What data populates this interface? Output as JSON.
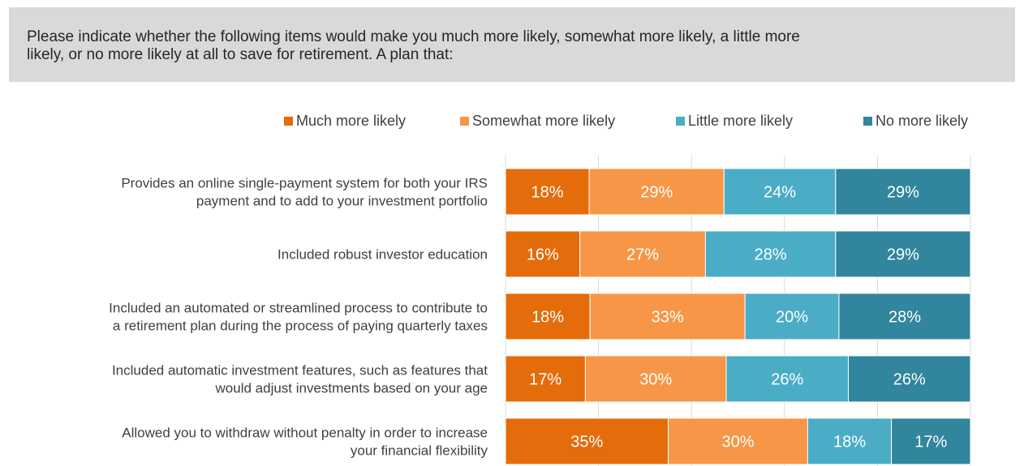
{
  "question": {
    "lines": [
      "Please indicate whether the following items would make you much more likely, somewhat more likely, a little more",
      "likely, or no more likely at all to save for retirement. A plan that:"
    ]
  },
  "chart_data": {
    "type": "bar",
    "orientation": "horizontal",
    "stacked": true,
    "percent_stacked": true,
    "title": "",
    "xlabel": "",
    "ylabel": "",
    "xlim": [
      0,
      100
    ],
    "grid": true,
    "legend_position": "top",
    "value_suffix": "%",
    "categories": [
      [
        "Provides an online single-payment system for both your IRS",
        "payment and to add to your investment portfolio"
      ],
      [
        "Included robust investor education"
      ],
      [
        "Included an automated or streamlined process to contribute to",
        "a retirement plan during the process of paying quarterly taxes"
      ],
      [
        "Included automatic investment features, such as features that",
        "would adjust investments based on your age"
      ],
      [
        "Allowed you to withdraw without penalty in order to increase",
        "your financial flexibility"
      ]
    ],
    "series": [
      {
        "name": "Much more likely",
        "color": "#e46c0a",
        "values": [
          18,
          16,
          18,
          17,
          35
        ]
      },
      {
        "name": "Somewhat more likely",
        "color": "#f79646",
        "values": [
          29,
          27,
          33,
          30,
          30
        ]
      },
      {
        "name": "Little more likely",
        "color": "#4bacc6",
        "values": [
          24,
          28,
          20,
          26,
          18
        ]
      },
      {
        "name": "No more likely",
        "color": "#31859c",
        "values": [
          29,
          29,
          28,
          26,
          17
        ]
      }
    ]
  }
}
